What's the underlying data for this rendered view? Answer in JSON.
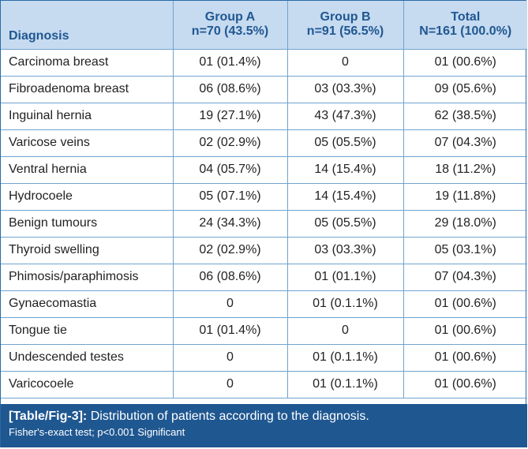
{
  "table": {
    "headers": {
      "diagnosis": "Diagnosis",
      "group_a_line1": "Group A",
      "group_a_line2": "n=70 (43.5%)",
      "group_b_line1": "Group B",
      "group_b_line2": "n=91 (56.5%)",
      "total_line1": "Total",
      "total_line2": "N=161 (100.0%)"
    },
    "rows": [
      {
        "diagnosis": "Carcinoma breast",
        "group_a": "01 (01.4%)",
        "group_b": "0",
        "total": "01 (00.6%)"
      },
      {
        "diagnosis": "Fibroadenoma breast",
        "group_a": "06 (08.6%)",
        "group_b": "03 (03.3%)",
        "total": "09 (05.6%)"
      },
      {
        "diagnosis": "Inguinal hernia",
        "group_a": "19 (27.1%)",
        "group_b": "43 (47.3%)",
        "total": "62 (38.5%)"
      },
      {
        "diagnosis": "Varicose veins",
        "group_a": "02 (02.9%)",
        "group_b": "05 (05.5%)",
        "total": "07 (04.3%)"
      },
      {
        "diagnosis": "Ventral hernia",
        "group_a": "04 (05.7%)",
        "group_b": "14 (15.4%)",
        "total": "18 (11.2%)"
      },
      {
        "diagnosis": "Hydrocoele",
        "group_a": "05 (07.1%)",
        "group_b": "14 (15.4%)",
        "total": "19 (11.8%)"
      },
      {
        "diagnosis": "Benign tumours",
        "group_a": "24 (34.3%)",
        "group_b": "05 (05.5%)",
        "total": "29 (18.0%)"
      },
      {
        "diagnosis": "Thyroid swelling",
        "group_a": "02 (02.9%)",
        "group_b": "03 (03.3%)",
        "total": "05 (03.1%)"
      },
      {
        "diagnosis": "Phimosis/paraphimosis",
        "group_a": "06 (08.6%)",
        "group_b": "01 (01.1%)",
        "total": "07 (04.3%)"
      },
      {
        "diagnosis": "Gynaecomastia",
        "group_a": "0",
        "group_b": "01 (0.1.1%)",
        "total": "01 (00.6%)"
      },
      {
        "diagnosis": "Tongue tie",
        "group_a": "01 (01.4%)",
        "group_b": "0",
        "total": "01 (00.6%)"
      },
      {
        "diagnosis": "Undescended testes",
        "group_a": "0",
        "group_b": "01 (0.1.1%)",
        "total": "01 (00.6%)"
      },
      {
        "diagnosis": "Varicocoele",
        "group_a": "0",
        "group_b": "01 (0.1.1%)",
        "total": "01 (00.6%)"
      }
    ]
  },
  "caption": {
    "label": "[Table/Fig-3]:",
    "text": "Distribution of patients according to the diagnosis.",
    "note": "Fisher's-exact test; p<0.001 Significant"
  },
  "colors": {
    "header_background": "#c6daf0",
    "header_text": "#1f5791",
    "border": "#6fa3cf",
    "caption_background": "#1f5791",
    "caption_text": "#ffffff"
  }
}
